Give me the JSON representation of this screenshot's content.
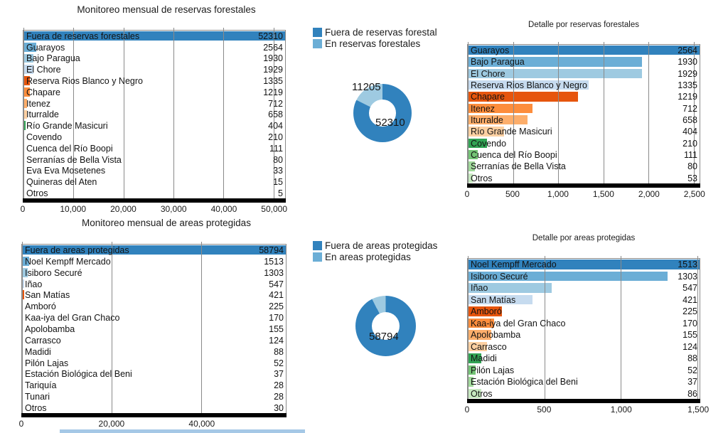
{
  "page": {
    "background": "#ffffff"
  },
  "palette": {
    "blues": [
      "#3182bd",
      "#6baed6",
      "#9ecae1",
      "#c6dbef"
    ],
    "oranges": [
      "#e6550d",
      "#fd8d3c",
      "#fdae6b",
      "#fdd0a2"
    ],
    "greens": [
      "#31a354",
      "#74c476",
      "#a1d99b",
      "#c7e9c0"
    ],
    "purples": [
      "#756bb1",
      "#9e9ac8",
      "#bcbddc"
    ],
    "axis_black": "#000000",
    "grid_gray": "#8a8a8a"
  },
  "legends": {
    "top": {
      "items": [
        {
          "label": "Fuera de reservas forestal",
          "color": "#3182bd"
        },
        {
          "label": "En reservas forestales",
          "color": "#6baed6"
        }
      ]
    },
    "bottom": {
      "items": [
        {
          "label": "Fuera de areas protegidas",
          "color": "#3182bd"
        },
        {
          "label": "En areas protegidas",
          "color": "#6baed6"
        }
      ]
    }
  },
  "chart_data": [
    {
      "id": "monitoreo-reservas-forestales",
      "type": "bar",
      "orientation": "horizontal",
      "title": "Monitoreo mensual de reservas forestales",
      "xlabel": "",
      "ylabel": "",
      "grid": true,
      "xlim": [
        0,
        52310
      ],
      "x_ticks": [
        {
          "label": "0",
          "value": 0
        },
        {
          "label": "10,000",
          "value": 10000
        },
        {
          "label": "20,000",
          "value": 20000
        },
        {
          "label": "30,000",
          "value": 30000
        },
        {
          "label": "40,000",
          "value": 40000
        },
        {
          "label": "50,000",
          "value": 50000
        }
      ],
      "categories": [
        "Fuera de reservas forestales",
        "Guarayos",
        "Bajo Paragua",
        "El Chore",
        "Reserva Rios Blanco y Negro",
        "Chapare",
        "Itenez",
        "Iturralde",
        "Río Grande Masicuri",
        "Covendo",
        "Cuenca del Río Boopi",
        "Serranías de Bella Vista",
        "Eva Eva Mosetenes",
        "Quineras del Aten",
        "Otros"
      ],
      "values": [
        52310,
        2564,
        1930,
        1929,
        1335,
        1219,
        712,
        658,
        404,
        210,
        111,
        80,
        33,
        15,
        5
      ],
      "value_labels": [
        "52310",
        "2564",
        "1930",
        "1929",
        "1335",
        "1219",
        "712",
        "658",
        "404",
        "210",
        "111",
        "80",
        "33",
        "15",
        "5"
      ],
      "colors": [
        "#3182bd",
        "#6baed6",
        "#9ecae1",
        "#c6dbef",
        "#e6550d",
        "#fd8d3c",
        "#fdae6b",
        "#fdd0a2",
        "#31a354",
        "#74c476",
        "#a1d99b",
        "#c7e9c0",
        "#756bb1",
        "#9e9ac8",
        "#bcbddc"
      ]
    },
    {
      "id": "donut-reservas-forestales",
      "type": "donut",
      "title": "",
      "legend": "top",
      "series": [
        {
          "name": "Fuera de reservas forestal",
          "value": 52310,
          "value_label": "52310",
          "color": "#3182bd"
        },
        {
          "name": "En reservas forestales",
          "value": 11205,
          "value_label": "11205",
          "color": "#9ecae1"
        }
      ]
    },
    {
      "id": "detalle-reservas-forestales",
      "type": "bar",
      "orientation": "horizontal",
      "title": "Detalle por reservas forestales",
      "xlabel": "",
      "ylabel": "",
      "grid": true,
      "xlim": [
        0,
        2564
      ],
      "x_ticks": [
        {
          "label": "0",
          "value": 0
        },
        {
          "label": "500",
          "value": 500
        },
        {
          "label": "1,000",
          "value": 1000
        },
        {
          "label": "1,500",
          "value": 1500
        },
        {
          "label": "2,000",
          "value": 2000
        },
        {
          "label": "2,500",
          "value": 2500
        }
      ],
      "categories": [
        "Guarayos",
        "Bajo Paragua",
        "El Chore",
        "Reserva Rios Blanco y Negro",
        "Chapare",
        "Itenez",
        "Iturralde",
        "Río Grande Masicuri",
        "Covendo",
        "Cuenca del Río Boopi",
        "Serranías de Bella Vista",
        "Otros"
      ],
      "values": [
        2564,
        1930,
        1929,
        1335,
        1219,
        712,
        658,
        404,
        210,
        111,
        80,
        53
      ],
      "value_labels": [
        "2564",
        "1930",
        "1929",
        "1335",
        "1219",
        "712",
        "658",
        "404",
        "210",
        "111",
        "80",
        "53"
      ],
      "colors": [
        "#3182bd",
        "#6baed6",
        "#9ecae1",
        "#c6dbef",
        "#e6550d",
        "#fd8d3c",
        "#fdae6b",
        "#fdd0a2",
        "#31a354",
        "#74c476",
        "#a1d99b",
        "#c7e9c0"
      ]
    },
    {
      "id": "monitoreo-areas-protegidas",
      "type": "bar",
      "orientation": "horizontal",
      "title": "Monitoreo mensual de areas protegidas",
      "xlabel": "",
      "ylabel": "",
      "grid": true,
      "xlim": [
        0,
        58794
      ],
      "x_ticks": [
        {
          "label": "0",
          "value": 0
        },
        {
          "label": "20,000",
          "value": 20000
        },
        {
          "label": "40,000",
          "value": 40000
        }
      ],
      "categories": [
        "Fuera de areas protegidas",
        "Noel Kempff Mercado",
        "Isiboro Securé",
        "Iñao",
        "San Matías",
        "Amboró",
        "Kaa-iya del Gran Chaco",
        "Apolobamba",
        "Carrasco",
        "Madidi",
        "Pilón Lajas",
        "Estación Biológica del Beni",
        "Tariquía",
        "Tunari",
        "Otros"
      ],
      "values": [
        58794,
        1513,
        1303,
        547,
        421,
        225,
        170,
        155,
        124,
        88,
        52,
        37,
        28,
        28,
        30
      ],
      "value_labels": [
        "58794",
        "1513",
        "1303",
        "547",
        "421",
        "225",
        "170",
        "155",
        "124",
        "88",
        "52",
        "37",
        "28",
        "28",
        "30"
      ],
      "colors": [
        "#3182bd",
        "#6baed6",
        "#9ecae1",
        "#c6dbef",
        "#e6550d",
        "#fd8d3c",
        "#fdae6b",
        "#fdd0a2",
        "#31a354",
        "#74c476",
        "#a1d99b",
        "#c7e9c0",
        "#756bb1",
        "#9e9ac8",
        "#bcbddc"
      ]
    },
    {
      "id": "donut-areas-protegidas",
      "type": "donut",
      "title": "",
      "legend": "bottom",
      "series": [
        {
          "name": "Fuera de areas protegidas",
          "value": 58794,
          "value_label": "58794",
          "color": "#3182bd"
        },
        {
          "name": "En areas protegidas",
          "value": 4721,
          "value_label": "",
          "color": "#9ecae1"
        }
      ]
    },
    {
      "id": "detalle-areas-protegidas",
      "type": "bar",
      "orientation": "horizontal",
      "title": "Detalle por areas protegidas",
      "xlabel": "",
      "ylabel": "",
      "grid": true,
      "xlim": [
        0,
        1513
      ],
      "x_ticks": [
        {
          "label": "0",
          "value": 0
        },
        {
          "label": "500",
          "value": 500
        },
        {
          "label": "1,000",
          "value": 1000
        },
        {
          "label": "1,500",
          "value": 1500
        }
      ],
      "categories": [
        "Noel Kempff Mercado",
        "Isiboro Securé",
        "Iñao",
        "San Matías",
        "Amboró",
        "Kaa-iya del Gran Chaco",
        "Apolobamba",
        "Carrasco",
        "Madidi",
        "Pilón Lajas",
        "Estación Biológica del Beni",
        "Otros"
      ],
      "values": [
        1513,
        1303,
        547,
        421,
        225,
        170,
        155,
        124,
        88,
        52,
        37,
        86
      ],
      "value_labels": [
        "1513",
        "1303",
        "547",
        "421",
        "225",
        "170",
        "155",
        "124",
        "88",
        "52",
        "37",
        "86"
      ],
      "colors": [
        "#3182bd",
        "#6baed6",
        "#9ecae1",
        "#c6dbef",
        "#e6550d",
        "#fd8d3c",
        "#fdae6b",
        "#fdd0a2",
        "#31a354",
        "#74c476",
        "#a1d99b",
        "#c7e9c0"
      ]
    }
  ]
}
